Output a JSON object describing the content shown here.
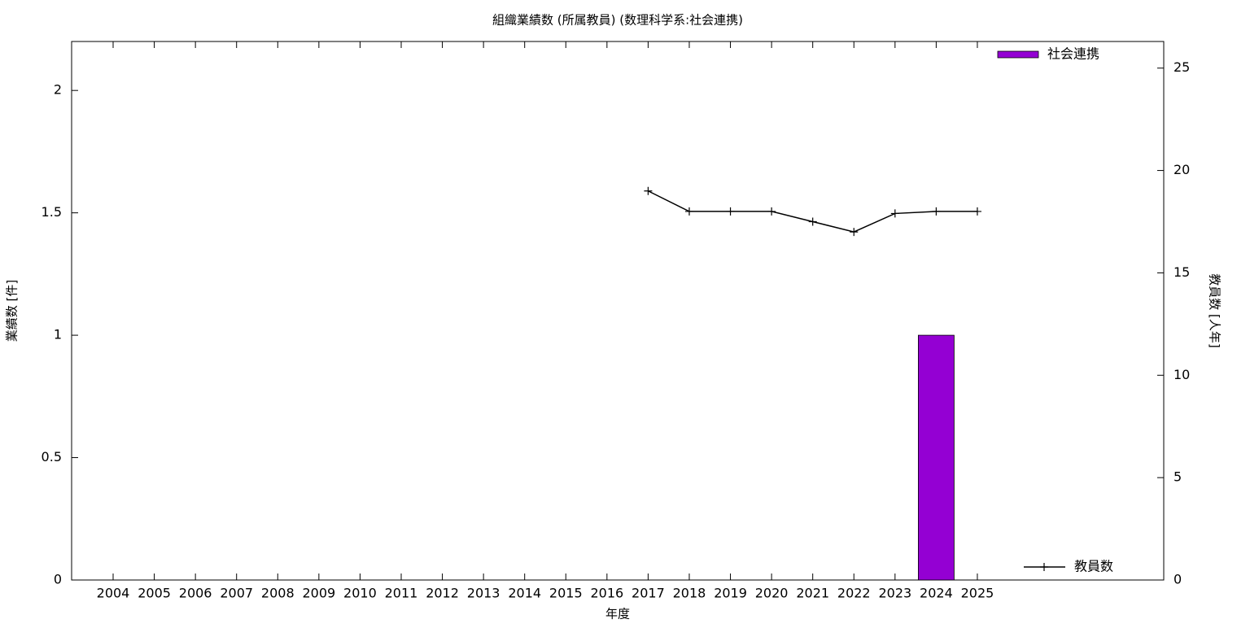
{
  "chart_data": {
    "type": "bar",
    "title": "組織業績数 (所属教員) (数理科学系:社会連携)",
    "xlabel": "年度",
    "ylabel": "業績数 [件]",
    "y2label": "教員数 [人年]",
    "categories": [
      "2004",
      "2005",
      "2006",
      "2007",
      "2008",
      "2009",
      "2010",
      "2011",
      "2012",
      "2013",
      "2014",
      "2015",
      "2016",
      "2017",
      "2018",
      "2019",
      "2020",
      "2021",
      "2022",
      "2023",
      "2024",
      "2025"
    ],
    "series": [
      {
        "name": "社会連携",
        "type": "bar",
        "color": "#9400d3",
        "legend": "top-right",
        "values": [
          0,
          0,
          0,
          0,
          0,
          0,
          0,
          0,
          0,
          0,
          0,
          0,
          0,
          0,
          0,
          0,
          0,
          0,
          0,
          0,
          1,
          0
        ]
      },
      {
        "name": "教員数",
        "type": "line",
        "axis": "y2",
        "color": "#000000",
        "legend": "bottom-right",
        "values": [
          null,
          null,
          null,
          null,
          null,
          null,
          null,
          null,
          null,
          null,
          null,
          null,
          null,
          19,
          18,
          18,
          18,
          17.5,
          17,
          17.9,
          18,
          18
        ]
      }
    ],
    "ylim": [
      0,
      2.2
    ],
    "yticks": [
      0,
      0.5,
      1,
      1.5,
      2
    ],
    "y2lim": [
      0,
      26.3
    ],
    "y2ticks": [
      0,
      5,
      10,
      15,
      20,
      25
    ]
  }
}
